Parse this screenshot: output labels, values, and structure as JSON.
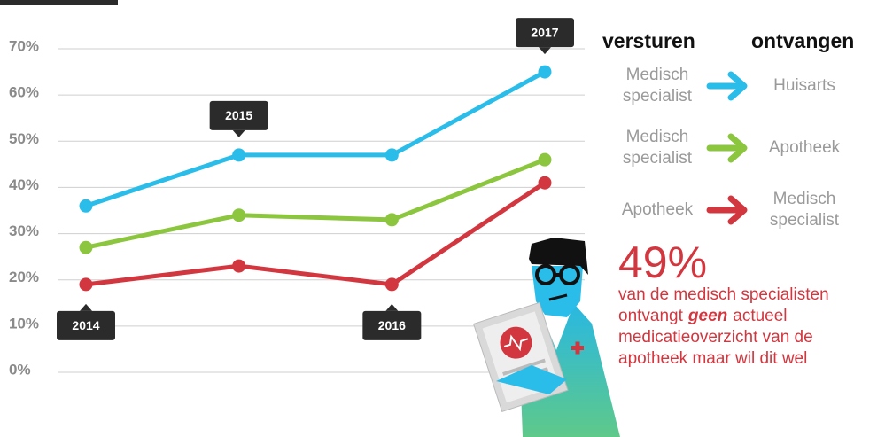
{
  "chart_data": {
    "type": "line",
    "categories": [
      "2014",
      "2015",
      "2016",
      "2017"
    ],
    "series": [
      {
        "from": [
          "Medisch",
          "specialist"
        ],
        "to": [
          "Huisarts"
        ],
        "color": "#2bbde9",
        "values": [
          36,
          47,
          47,
          65
        ]
      },
      {
        "from": [
          "Medisch",
          "specialist"
        ],
        "to": [
          "Apotheek"
        ],
        "color": "#8cc63f",
        "values": [
          27,
          34,
          33,
          46
        ]
      },
      {
        "from": [
          "Apotheek"
        ],
        "to": [
          "Medisch",
          "specialist"
        ],
        "color": "#d2373f",
        "values": [
          19,
          23,
          19,
          41
        ]
      }
    ],
    "legend_headers": [
      "versturen",
      "ontvangen"
    ],
    "ylim": [
      0,
      70
    ],
    "yticks": [
      {
        "value": 0,
        "label": "0%"
      },
      {
        "value": 10,
        "label": "10%"
      },
      {
        "value": 20,
        "label": "20%"
      },
      {
        "value": 30,
        "label": "30%"
      },
      {
        "value": 40,
        "label": "40%"
      },
      {
        "value": 50,
        "label": "50%"
      },
      {
        "value": 60,
        "label": "60%"
      },
      {
        "value": 70,
        "label": "70%"
      }
    ],
    "grid": true,
    "annotation": {
      "headline": "49%",
      "lines": [
        "van de medisch specialisten",
        {
          "before": "ontvangt",
          "emphasis": "geen",
          "after": "actueel"
        },
        "medicatieoverzicht van de",
        "apotheek maar wil dit wel"
      ]
    }
  }
}
